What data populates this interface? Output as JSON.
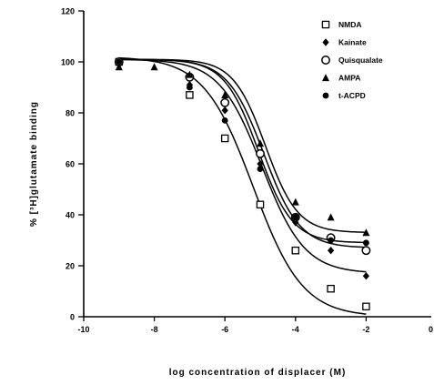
{
  "chart_data": {
    "type": "scatter",
    "title": "",
    "xlabel": "log concentration of displacer (M)",
    "ylabel": "% [³H]glutamate binding",
    "xlim": [
      -10,
      0
    ],
    "ylim": [
      0,
      120
    ],
    "x_ticks": [
      -10,
      -8,
      -6,
      -4,
      -2,
      0
    ],
    "y_ticks": [
      0,
      20,
      40,
      60,
      80,
      100,
      120
    ],
    "grid": false,
    "legend_position": "top-right",
    "series": [
      {
        "name": "NMDA",
        "marker": "square",
        "points": [
          {
            "x": -9,
            "y": 100
          },
          {
            "x": -7,
            "y": 87
          },
          {
            "x": -6,
            "y": 70
          },
          {
            "x": -5,
            "y": 44
          },
          {
            "x": -4,
            "y": 26
          },
          {
            "x": -3,
            "y": 11
          },
          {
            "x": -2,
            "y": 4
          }
        ],
        "curve": {
          "bottom": 0,
          "top": 102,
          "log_ec50": -5.2,
          "hill": 0.62
        }
      },
      {
        "name": "Kainate",
        "marker": "diamond",
        "points": [
          {
            "x": -9,
            "y": 99
          },
          {
            "x": -7,
            "y": 91
          },
          {
            "x": -6,
            "y": 81
          },
          {
            "x": -5,
            "y": 60
          },
          {
            "x": -4,
            "y": 37
          },
          {
            "x": -3,
            "y": 26
          },
          {
            "x": -2,
            "y": 16
          }
        ],
        "curve": {
          "bottom": 17,
          "top": 101,
          "log_ec50": -4.95,
          "hill": 0.72
        }
      },
      {
        "name": "Quisqualate",
        "marker": "open-circle",
        "points": [
          {
            "x": -9,
            "y": 100
          },
          {
            "x": -7,
            "y": 94
          },
          {
            "x": -6,
            "y": 84
          },
          {
            "x": -5,
            "y": 64
          },
          {
            "x": -4,
            "y": 39
          },
          {
            "x": -3,
            "y": 31
          },
          {
            "x": -2,
            "y": 26
          }
        ],
        "curve": {
          "bottom": 27,
          "top": 101,
          "log_ec50": -4.9,
          "hill": 0.85
        }
      },
      {
        "name": "AMPA",
        "marker": "triangle",
        "points": [
          {
            "x": -9,
            "y": 98
          },
          {
            "x": -8,
            "y": 98
          },
          {
            "x": -7,
            "y": 95
          },
          {
            "x": -6,
            "y": 87
          },
          {
            "x": -5,
            "y": 68
          },
          {
            "x": -4,
            "y": 45
          },
          {
            "x": -3,
            "y": 39
          },
          {
            "x": -2,
            "y": 33
          }
        ],
        "curve": {
          "bottom": 33,
          "top": 101,
          "log_ec50": -4.85,
          "hill": 0.95
        }
      },
      {
        "name": "t-ACPD",
        "marker": "filled-circle",
        "points": [
          {
            "x": -9,
            "y": 100
          },
          {
            "x": -7,
            "y": 90
          },
          {
            "x": -6,
            "y": 77
          },
          {
            "x": -5,
            "y": 58
          },
          {
            "x": -4,
            "y": 39
          },
          {
            "x": -3,
            "y": 30
          },
          {
            "x": -2,
            "y": 29
          }
        ],
        "curve": {
          "bottom": 29,
          "top": 101,
          "log_ec50": -5.05,
          "hill": 0.9
        }
      }
    ]
  }
}
